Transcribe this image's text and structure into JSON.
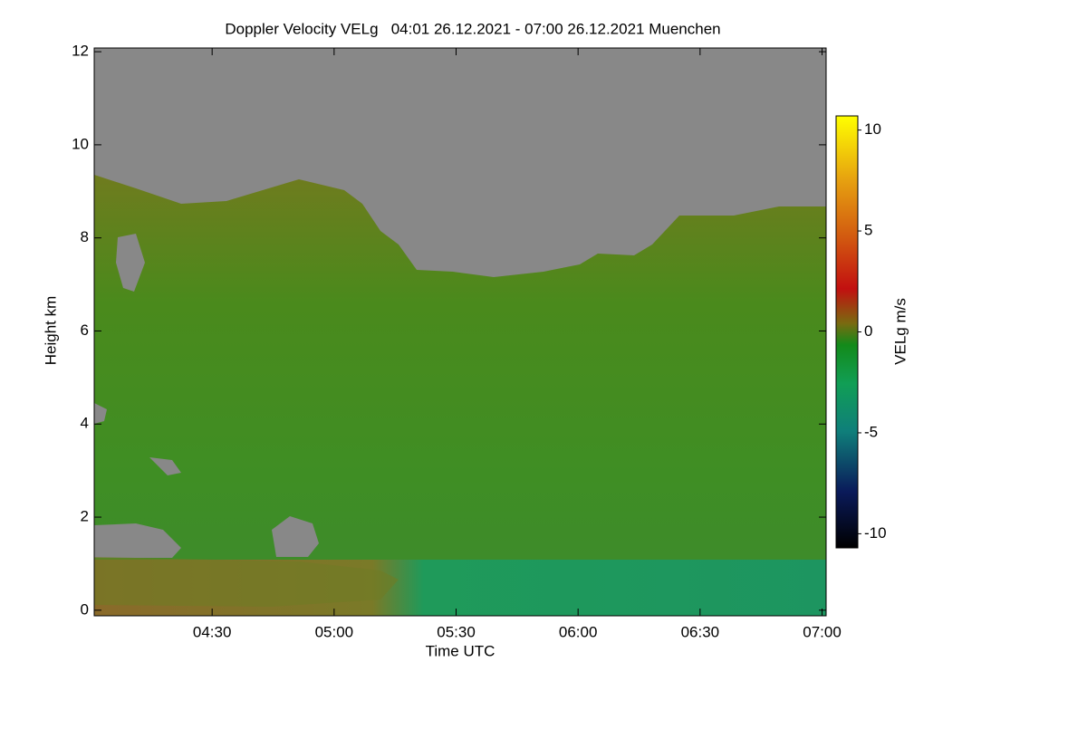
{
  "chart_data": {
    "type": "heatmap",
    "title": "Doppler Velocity VELg   04:01 26.12.2021 - 07:00 26.12.2021 Muenchen",
    "xlabel": "Time UTC",
    "ylabel": "Height km",
    "xlim": [
      241,
      421
    ],
    "xticks": [
      {
        "value": 270,
        "label": "04:30"
      },
      {
        "value": 300,
        "label": "05:00"
      },
      {
        "value": 330,
        "label": "05:30"
      },
      {
        "value": 360,
        "label": "06:00"
      },
      {
        "value": 390,
        "label": "06:30"
      },
      {
        "value": 420,
        "label": "07:00"
      }
    ],
    "ylim": [
      -0.12,
      12.08
    ],
    "yticks": [
      0,
      2,
      4,
      6,
      8,
      10,
      12
    ],
    "colorbar": {
      "label": "VELg m/s",
      "lim": [
        -10.7,
        10.7
      ],
      "ticks": [
        -10,
        -5,
        0,
        5,
        10
      ]
    }
  }
}
